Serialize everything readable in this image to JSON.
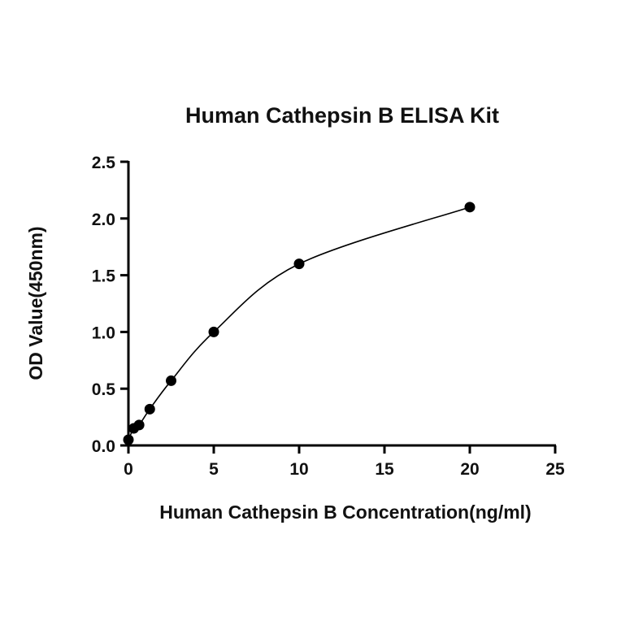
{
  "chart_data": {
    "type": "scatter",
    "title": "Human Cathepsin B  ELISA Kit",
    "xlabel": "Human Cathepsin B Concentration(ng/ml)",
    "ylabel": "OD Value(450nm)",
    "xlim": [
      0,
      25
    ],
    "ylim": [
      0,
      2.5
    ],
    "xticks": [
      "0",
      "5",
      "10",
      "15",
      "20",
      "25"
    ],
    "yticks": [
      "0.0",
      "0.5",
      "1.0",
      "1.5",
      "2.0",
      "2.5"
    ],
    "grid": false,
    "fit_curve": true,
    "series": [
      {
        "x": [
          0,
          0.3125,
          0.625,
          1.25,
          2.5,
          5,
          10,
          20
        ],
        "y": [
          0.05,
          0.15,
          0.18,
          0.32,
          0.57,
          1.0,
          1.6,
          2.1
        ]
      }
    ],
    "colors": {
      "marker": "#000000",
      "line": "#000000"
    }
  }
}
